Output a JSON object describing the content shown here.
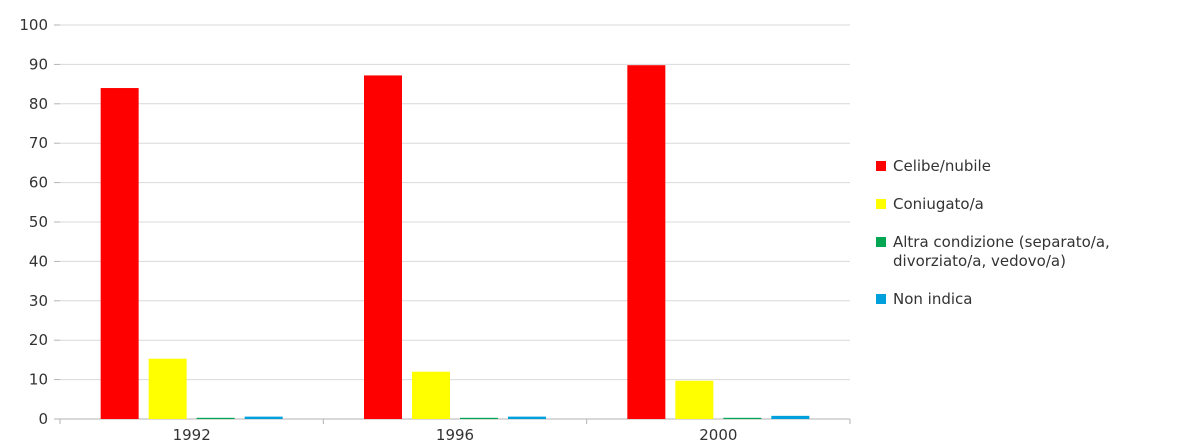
{
  "chart_data": {
    "type": "bar",
    "categories": [
      "1992",
      "1996",
      "2000"
    ],
    "series": [
      {
        "name": "Celibe/nubile",
        "color": "#ff0000",
        "values": [
          84,
          87.2,
          89.8
        ]
      },
      {
        "name": "Coniugato/a",
        "color": "#ffff00",
        "values": [
          15.3,
          12,
          9.7
        ]
      },
      {
        "name": "Altra condizione (separato/a, divorziato/a, vedovo/a)",
        "name_lines": [
          "Altra condizione (separato/a,",
          "divorziato/a, vedovo/a)"
        ],
        "color": "#00a651",
        "values": [
          0.3,
          0.3,
          0.3
        ]
      },
      {
        "name": "Non indica",
        "color": "#00a0dc",
        "values": [
          0.6,
          0.6,
          0.8
        ]
      }
    ],
    "yticks": [
      "0",
      "10",
      "20",
      "30",
      "40",
      "50",
      "60",
      "70",
      "80",
      "90",
      "100"
    ],
    "ylim": [
      0,
      100
    ],
    "grid": true,
    "legend_position": "right",
    "title": "",
    "xlabel": "",
    "ylabel": ""
  }
}
